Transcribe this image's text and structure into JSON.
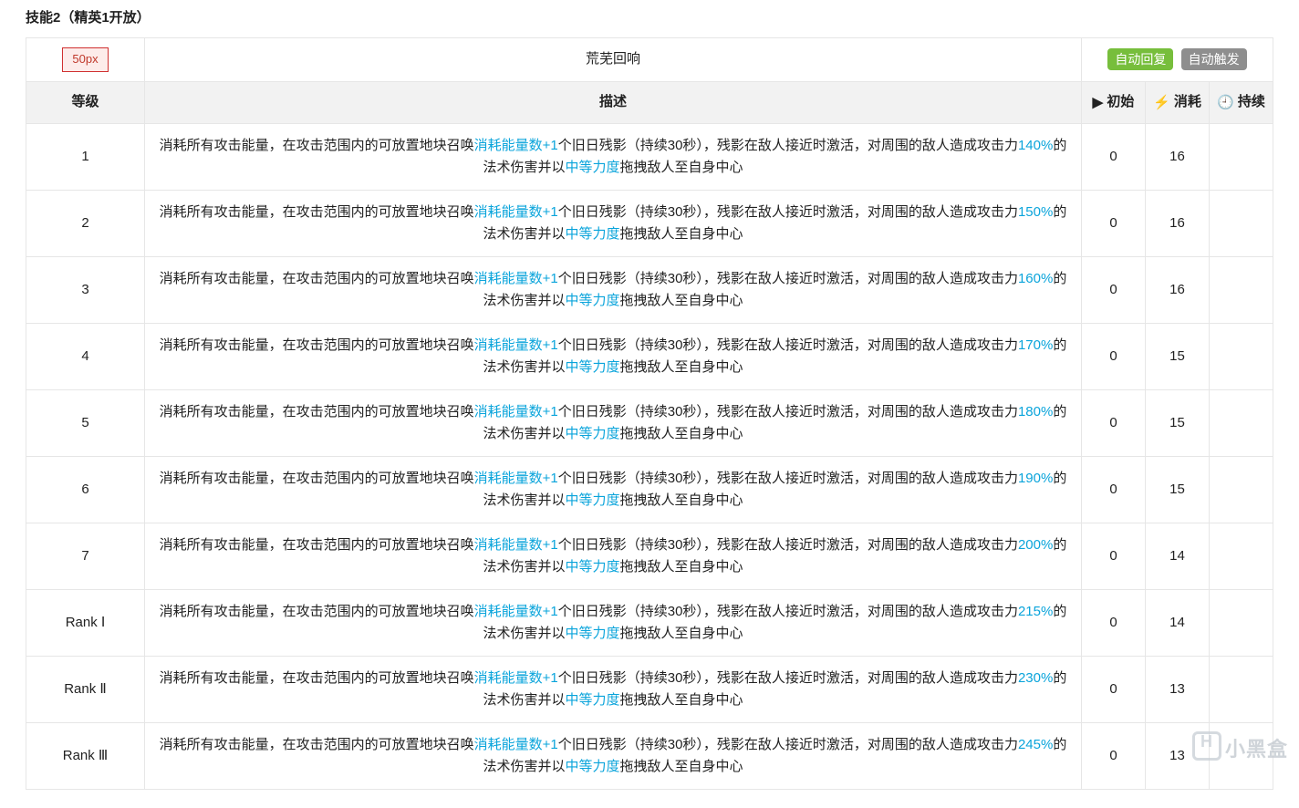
{
  "section_title": "技能2（精英1开放）",
  "header": {
    "img_placeholder": "50px",
    "skill_name": "荒芜回响",
    "badge_auto_recover": "自动回复",
    "badge_auto_trigger": "自动触发"
  },
  "columns": {
    "level": "等级",
    "desc": "描述",
    "initial": "初始",
    "cost": "消耗",
    "duration": "持续"
  },
  "icons": {
    "play": "▶",
    "bolt": "⚡",
    "clock": "🕘"
  },
  "desc_template": "消耗所有攻击能量，在攻击范围内的可放置地块召唤#消耗能量数+1#个旧日残影（持续30秒），残影在敌人接近时激活，对周围的敌人造成攻击力#PCT#的法术伤害并以#中等力度#拖拽敌人至自身中心",
  "highlight_tokens": [
    "消耗能量数+1",
    "中等力度"
  ],
  "rows": [
    {
      "level": "1",
      "pct": "140%",
      "initial": "0",
      "cost": "16",
      "duration": ""
    },
    {
      "level": "2",
      "pct": "150%",
      "initial": "0",
      "cost": "16",
      "duration": ""
    },
    {
      "level": "3",
      "pct": "160%",
      "initial": "0",
      "cost": "16",
      "duration": ""
    },
    {
      "level": "4",
      "pct": "170%",
      "initial": "0",
      "cost": "15",
      "duration": ""
    },
    {
      "level": "5",
      "pct": "180%",
      "initial": "0",
      "cost": "15",
      "duration": ""
    },
    {
      "level": "6",
      "pct": "190%",
      "initial": "0",
      "cost": "15",
      "duration": ""
    },
    {
      "level": "7",
      "pct": "200%",
      "initial": "0",
      "cost": "14",
      "duration": ""
    },
    {
      "level": "Rank Ⅰ",
      "pct": "215%",
      "initial": "0",
      "cost": "14",
      "duration": ""
    },
    {
      "level": "Rank Ⅱ",
      "pct": "230%",
      "initial": "0",
      "cost": "13",
      "duration": ""
    },
    {
      "level": "Rank Ⅲ",
      "pct": "245%",
      "initial": "0",
      "cost": "13",
      "duration": ""
    }
  ],
  "watermark": "小黑盒",
  "colors": {
    "border": "#e6e6e6",
    "header_bg": "#f2f2f2",
    "highlight": "#0aa4db",
    "badge_green": "#77be3c",
    "badge_grey": "#8e8e8e",
    "img_border": "#d03030",
    "img_bg": "#fdecea",
    "img_text": "#c0392b"
  }
}
